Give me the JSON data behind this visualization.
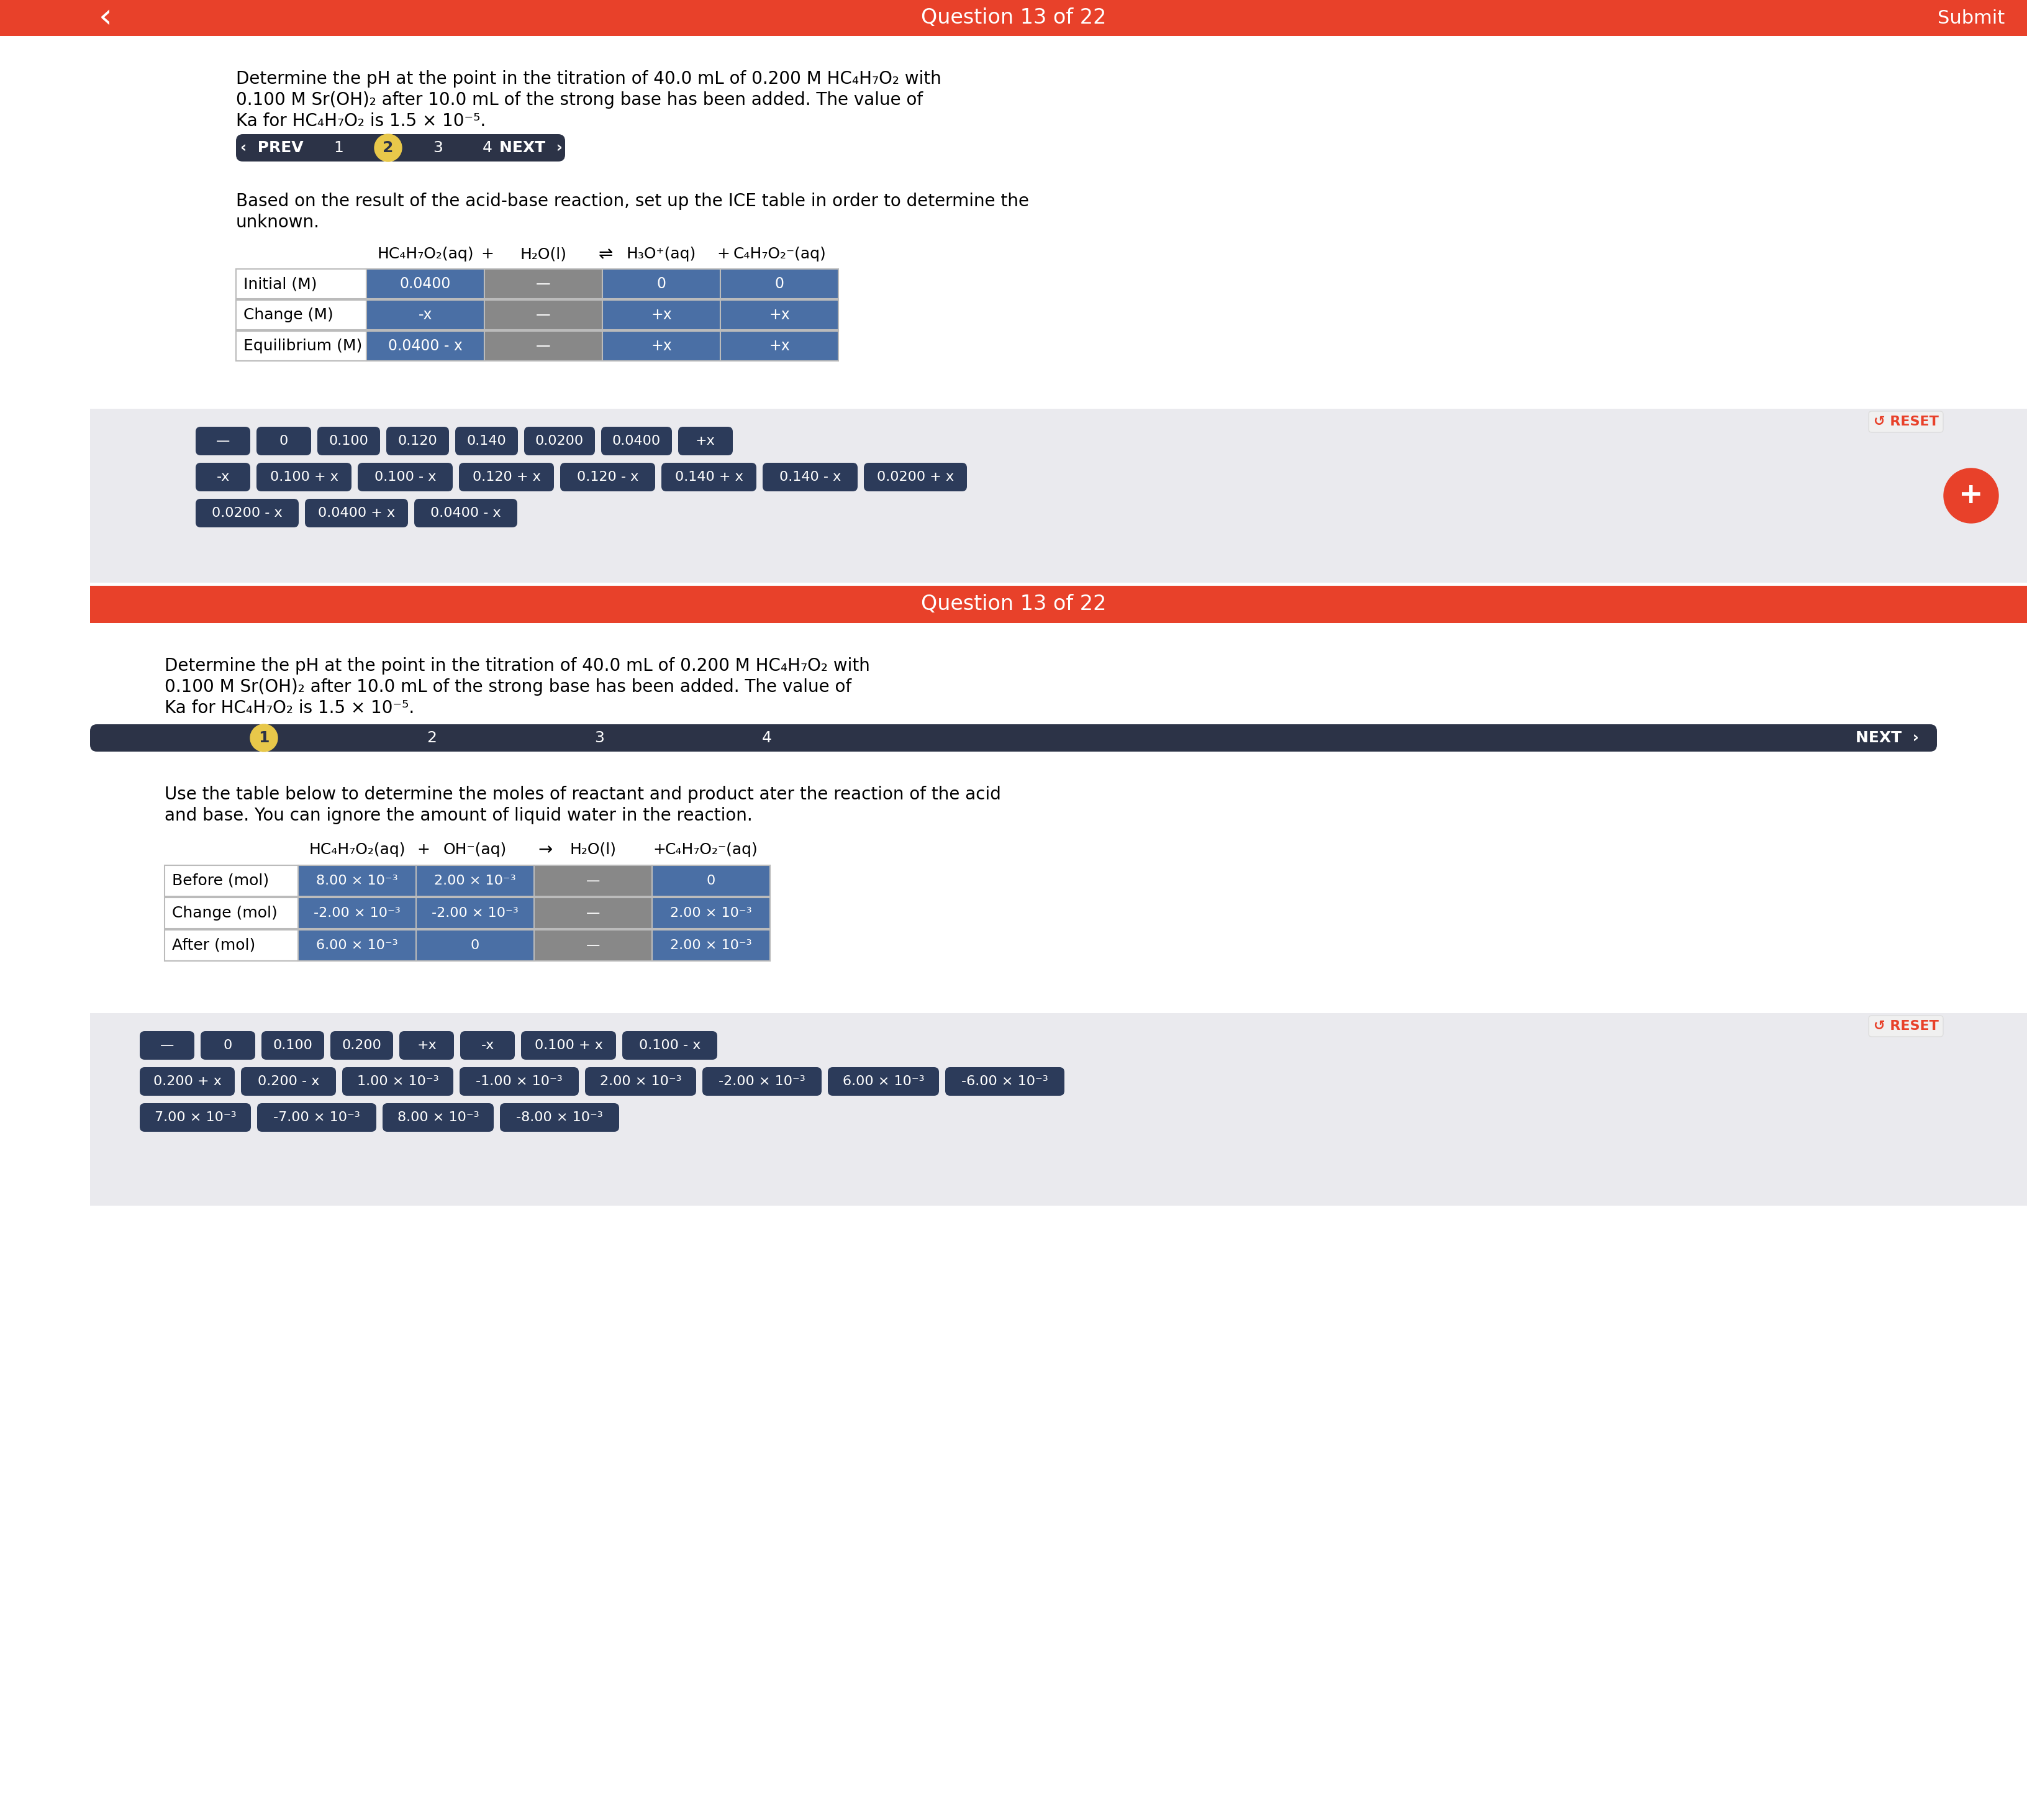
{
  "bg_color": "#ffffff",
  "top_bar_color": "#e8412a",
  "question_label": "Question 13 of 22",
  "submit_label": "Submit",
  "nav_bar_color": "#2c3347",
  "nav_highlight_color": "#e8c84a",
  "section1_tokens_row1": [
    "—",
    "0",
    "0.100",
    "0.120",
    "0.140",
    "0.0200",
    "0.0400",
    "+x"
  ],
  "section1_tokens_row2": [
    "-x",
    "0.100 + x",
    "0.100 - x",
    "0.120 + x",
    "0.120 - x",
    "0.140 + x",
    "0.140 - x",
    "0.0200 + x"
  ],
  "section1_tokens_row3": [
    "0.0200 - x",
    "0.0400 + x",
    "0.0400 - x"
  ],
  "section2_tokens_row1": [
    "—",
    "0",
    "0.100",
    "0.200",
    "+x",
    "-x",
    "0.100 + x",
    "0.100 - x"
  ],
  "section2_tokens_row2": [
    "0.200 + x",
    "0.200 - x",
    "1.00 × 10⁻³",
    "-1.00 × 10⁻³",
    "2.00 × 10⁻³",
    "-2.00 × 10⁻³",
    "6.00 × 10⁻³",
    "-6.00 × 10⁻³"
  ],
  "section2_tokens_row3": [
    "7.00 × 10⁻³",
    "-7.00 × 10⁻³",
    "8.00 × 10⁻³",
    "-8.00 × 10⁻³"
  ],
  "reset_color": "#e8412a",
  "gray_panel_color": "#eaeaee",
  "token_dark_bg": "#2c3b5a",
  "token_dark_bg2": "#3d5080",
  "blue_cell_color": "#4a6fa5",
  "gray_cell_color": "#888888",
  "white_cell_color": "#ffffff",
  "divider_color": "#e8412a"
}
